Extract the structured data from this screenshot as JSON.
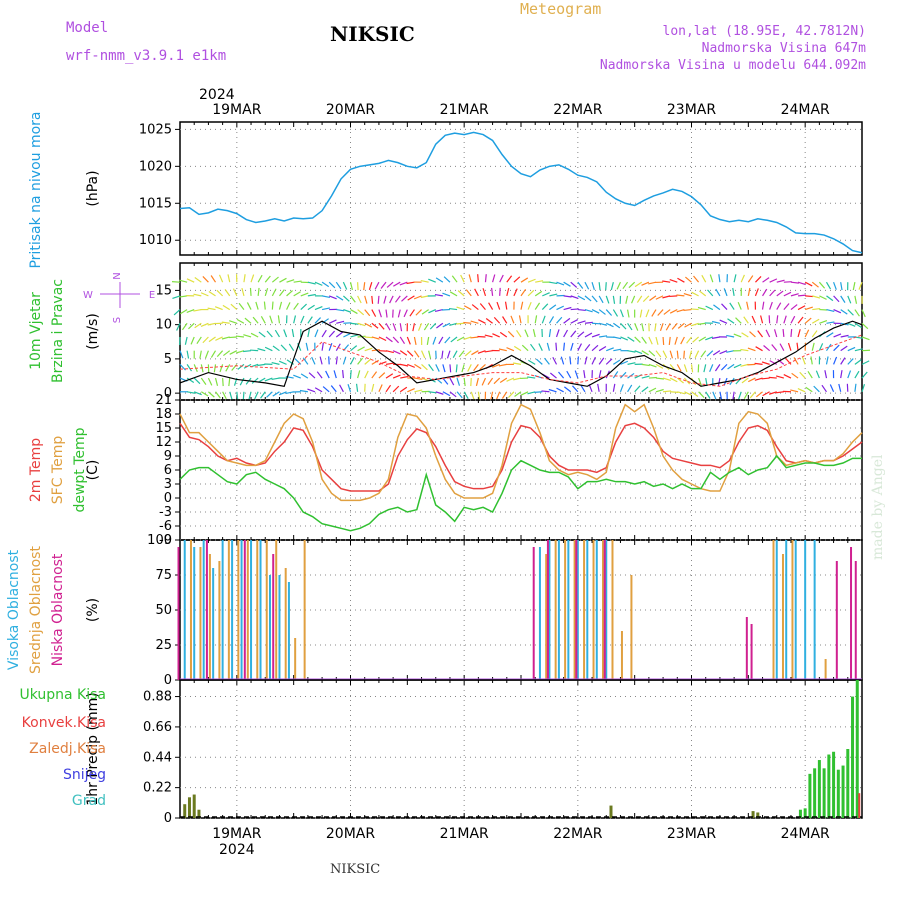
{
  "header": {
    "station": "NIKSIC",
    "meteogram": "Meteogram",
    "model_label": "Model",
    "model_name": "wrf-nmm_v3.9.1 e1km",
    "lonlat": "lon,lat (18.95E, 42.7812N)",
    "altitude": "Nadmorska Visina 647m",
    "model_altitude": "Nadmorska Visina u modelu 644.092m",
    "footer": "NIKSIC",
    "credit": "made by Angel"
  },
  "colors": {
    "pressure": "#1e9ee0",
    "temp2m": "#e84040",
    "sfc": "#e0a040",
    "dewpt": "#30c030",
    "high_cloud": "#30b0e0",
    "mid_cloud": "#e0a040",
    "low_cloud": "#d02090",
    "total_precip": "#30c030",
    "conv_precip": "#e84040",
    "frozen_precip": "#e08040",
    "snow": "#4040e0",
    "grad": "#40c0c0",
    "wind_label": "#30c030",
    "purple": "#b050e0"
  },
  "chart_data": [
    {
      "type": "line",
      "name": "pressure-panel",
      "title": "Pritisak na nivou mora",
      "ylabel": "(hPa)",
      "ylim": [
        1008,
        1026
      ],
      "yticks": [
        "1010",
        "1015",
        "1020",
        "1025"
      ],
      "ytick_values": [
        1010,
        1015,
        1020,
        1025
      ],
      "x_hours_range": [
        0,
        144
      ],
      "top_year": "2024",
      "top_dates": [
        "19MAR",
        "20MAR",
        "21MAR",
        "22MAR",
        "23MAR",
        "24MAR"
      ],
      "series": [
        {
          "key": "pressure",
          "x": [
            0,
            2,
            4,
            6,
            8,
            10,
            12,
            14,
            16,
            18,
            20,
            22,
            24,
            26,
            28,
            30,
            32,
            34,
            36,
            38,
            40,
            42,
            44,
            46,
            48,
            50,
            52,
            54,
            56,
            58,
            60,
            62,
            64,
            66,
            68,
            70,
            72,
            74,
            76,
            78,
            80,
            82,
            84,
            86,
            88,
            90,
            92,
            94,
            96,
            98,
            100,
            102,
            104,
            106,
            108,
            110,
            112,
            114,
            116,
            118,
            120,
            122,
            124,
            126,
            128,
            130,
            132,
            134,
            136,
            138,
            140,
            142,
            144
          ],
          "values": [
            1014.3,
            1014.4,
            1013.5,
            1013.7,
            1014.2,
            1014.0,
            1013.6,
            1012.8,
            1012.4,
            1012.6,
            1012.9,
            1012.6,
            1013.0,
            1012.9,
            1013.0,
            1014.0,
            1016.0,
            1018.3,
            1019.6,
            1020.0,
            1020.2,
            1020.4,
            1020.8,
            1020.5,
            1020.0,
            1019.8,
            1020.5,
            1023.0,
            1024.2,
            1024.5,
            1024.3,
            1024.6,
            1024.3,
            1023.5,
            1021.6,
            1020.0,
            1019.0,
            1018.6,
            1019.5,
            1020.0,
            1020.2,
            1019.6,
            1018.8,
            1018.5,
            1017.9,
            1016.5,
            1015.6,
            1015.0,
            1014.7,
            1015.4,
            1016.0,
            1016.4,
            1016.9,
            1016.6,
            1015.9,
            1014.8,
            1013.3,
            1012.8,
            1012.5,
            1012.7,
            1012.5,
            1012.9,
            1012.7,
            1012.4,
            1011.8,
            1011.0,
            1010.9,
            1010.9,
            1010.7,
            1010.2,
            1009.5,
            1008.6,
            1008.3
          ]
        }
      ]
    },
    {
      "type": "line",
      "name": "wind-panel",
      "title": "10m Vjetar",
      "title2": "Brzina i Pravac",
      "ylabel": "(m/s)",
      "compass": [
        "N",
        "W",
        "E",
        "S"
      ],
      "ylim": [
        -1,
        19
      ],
      "yticks": [
        "0",
        "5",
        "10",
        "15"
      ],
      "ytick_values": [
        0,
        5,
        10,
        15
      ],
      "series": [
        {
          "key": "wind-speed",
          "x": [
            0,
            6,
            12,
            18,
            22,
            26,
            30,
            34,
            38,
            42,
            46,
            50,
            54,
            58,
            62,
            66,
            70,
            74,
            78,
            82,
            86,
            90,
            94,
            98,
            102,
            106,
            110,
            114,
            118,
            122,
            126,
            130,
            134,
            138,
            142,
            144
          ],
          "values": [
            1.5,
            3.0,
            2.0,
            1.5,
            1.0,
            9.0,
            10.5,
            9.0,
            8.5,
            6.0,
            4.0,
            1.5,
            2.0,
            2.5,
            3.0,
            4.0,
            5.5,
            4.0,
            2.0,
            1.5,
            1.0,
            2.5,
            5.0,
            5.5,
            4.0,
            3.0,
            1.0,
            1.5,
            2.0,
            3.0,
            4.5,
            6.0,
            8.0,
            9.5,
            10.5,
            10.0
          ]
        },
        {
          "key": "gust-line",
          "x": [
            0,
            12,
            24,
            30,
            36,
            42,
            48,
            54,
            60,
            66,
            72,
            78,
            84,
            90,
            96,
            102,
            108,
            114,
            120,
            126,
            132,
            138,
            144
          ],
          "values": [
            3.5,
            4.0,
            3.5,
            7.5,
            6.0,
            4.5,
            2.5,
            2.0,
            2.5,
            3.0,
            3.0,
            2.0,
            1.5,
            2.5,
            2.5,
            3.0,
            1.5,
            1.0,
            2.5,
            3.5,
            5.5,
            7.0,
            8.5
          ]
        }
      ]
    },
    {
      "type": "line",
      "name": "temperature-panel",
      "title": "2m Temp",
      "title2": "SFC Temp",
      "title3": "dewpt Temp",
      "ylabel": "(C)",
      "ylim": [
        -9,
        21
      ],
      "yticks": [
        "-9",
        "-6",
        "-3",
        "0",
        "3",
        "6",
        "9",
        "12",
        "15",
        "18",
        "21"
      ],
      "ytick_values": [
        -9,
        -6,
        -3,
        0,
        3,
        6,
        9,
        12,
        15,
        18,
        21
      ],
      "series": [
        {
          "key": "temp2m",
          "x": [
            0,
            2,
            4,
            6,
            8,
            10,
            12,
            14,
            16,
            18,
            20,
            22,
            24,
            26,
            28,
            30,
            32,
            34,
            36,
            38,
            40,
            42,
            44,
            46,
            48,
            50,
            52,
            54,
            56,
            58,
            60,
            62,
            64,
            66,
            68,
            70,
            72,
            74,
            76,
            78,
            80,
            82,
            84,
            86,
            88,
            90,
            92,
            94,
            96,
            98,
            100,
            102,
            104,
            106,
            108,
            110,
            112,
            114,
            116,
            118,
            120,
            122,
            124,
            126,
            128,
            130,
            132,
            134,
            136,
            138,
            140,
            142,
            144
          ],
          "values": [
            16,
            13,
            12.5,
            11,
            9,
            8,
            8.5,
            7.5,
            7,
            7.5,
            10,
            12,
            15,
            14.5,
            11,
            6,
            4,
            2,
            1.5,
            1.5,
            1.5,
            1.5,
            3,
            9,
            12.5,
            14.8,
            14,
            11,
            7,
            3.5,
            2.5,
            2.0,
            2.0,
            2.5,
            6,
            12,
            15.5,
            15,
            13,
            9,
            7,
            6,
            6,
            6,
            5.5,
            6.5,
            12,
            15.5,
            16,
            15,
            13,
            10,
            8.5,
            8,
            7.5,
            7,
            7,
            6.5,
            8,
            12,
            15,
            15.5,
            14.5,
            11,
            8,
            7.5,
            8,
            7.5,
            8,
            8,
            9,
            10.5,
            12
          ]
        },
        {
          "key": "sfc",
          "x": [
            0,
            2,
            4,
            6,
            8,
            10,
            12,
            14,
            16,
            18,
            20,
            22,
            24,
            26,
            28,
            30,
            32,
            34,
            36,
            38,
            40,
            42,
            44,
            46,
            48,
            50,
            52,
            54,
            56,
            58,
            60,
            62,
            64,
            66,
            68,
            70,
            72,
            74,
            76,
            78,
            80,
            82,
            84,
            86,
            88,
            90,
            92,
            94,
            96,
            98,
            100,
            102,
            104,
            106,
            108,
            110,
            112,
            114,
            116,
            118,
            120,
            122,
            124,
            126,
            128,
            130,
            132,
            134,
            136,
            138,
            140,
            142,
            144
          ],
          "values": [
            18,
            14,
            14,
            12,
            10,
            8,
            7.5,
            7,
            7,
            8,
            12,
            16,
            18,
            17,
            12,
            4,
            1,
            -0.5,
            -0.5,
            -0.5,
            0,
            1,
            4,
            13,
            18,
            17.5,
            15,
            9,
            4,
            1,
            0,
            0,
            0,
            1,
            7,
            16,
            20,
            19,
            14,
            8,
            6,
            5,
            5.5,
            5,
            4,
            5.5,
            15,
            20,
            18.5,
            20,
            15,
            9,
            6,
            4,
            3,
            2,
            1.5,
            1.5,
            6,
            16,
            18.5,
            18,
            16,
            9,
            7,
            7.5,
            8,
            7.5,
            8,
            8,
            9.5,
            12,
            14
          ]
        },
        {
          "key": "dewpt",
          "x": [
            0,
            2,
            4,
            6,
            8,
            10,
            12,
            14,
            16,
            18,
            20,
            22,
            24,
            26,
            28,
            30,
            32,
            34,
            36,
            38,
            40,
            42,
            44,
            46,
            48,
            50,
            52,
            54,
            56,
            58,
            60,
            62,
            64,
            66,
            68,
            70,
            72,
            74,
            76,
            78,
            80,
            82,
            84,
            86,
            88,
            90,
            92,
            94,
            96,
            98,
            100,
            102,
            104,
            106,
            108,
            110,
            112,
            114,
            116,
            118,
            120,
            122,
            124,
            126,
            128,
            130,
            132,
            134,
            136,
            138,
            140,
            142,
            144
          ],
          "values": [
            4,
            6,
            6.5,
            6.5,
            5,
            3.5,
            3,
            5,
            5.5,
            4,
            3,
            2,
            0,
            -3,
            -4,
            -5.5,
            -6,
            -6.5,
            -7,
            -6.5,
            -5.5,
            -3.5,
            -2.5,
            -2,
            -3,
            -2.5,
            5,
            -1.5,
            -3,
            -5,
            -2,
            -2.5,
            -2,
            -3,
            1,
            6,
            8,
            7,
            6,
            5.5,
            5.5,
            4.5,
            2,
            3.5,
            3.5,
            4,
            3.5,
            3.5,
            3,
            3.5,
            2.5,
            3,
            2,
            3,
            2,
            2,
            5.5,
            4,
            5.5,
            6.5,
            5,
            6,
            6.5,
            9,
            6.5,
            7,
            7.5,
            7.5,
            7,
            7,
            7.5,
            8.5,
            8.5
          ]
        }
      ]
    },
    {
      "type": "bar",
      "name": "cloud-panel",
      "title": "Visoka Oblacnost",
      "title2": "Srednja Oblacnost",
      "title3": "Niska Oblacnost",
      "ylabel": "(%)",
      "ylim": [
        0,
        100
      ],
      "yticks": [
        "0",
        "25",
        "50",
        "75",
        "100"
      ],
      "ytick_values": [
        0,
        25,
        50,
        75,
        100
      ],
      "series": [
        {
          "key": "high",
          "x": [
            1,
            3,
            5,
            7,
            9,
            11,
            13,
            15,
            17,
            19,
            21,
            23,
            76,
            78,
            80,
            82,
            84,
            86,
            88,
            90,
            126,
            128,
            130,
            132,
            134
          ],
          "values": [
            100,
            95,
            100,
            80,
            100,
            100,
            100,
            100,
            100,
            75,
            75,
            70,
            95,
            100,
            100,
            100,
            100,
            100,
            100,
            100,
            100,
            100,
            100,
            100,
            100
          ]
        },
        {
          "key": "mid",
          "x": [
            2,
            4,
            6,
            8,
            10,
            12,
            14,
            16,
            18,
            20,
            22,
            24,
            26,
            77,
            79,
            81,
            83,
            85,
            87,
            89,
            91,
            93,
            95,
            125,
            127,
            129,
            136
          ],
          "values": [
            100,
            95,
            90,
            85,
            100,
            100,
            100,
            100,
            100,
            100,
            80,
            30,
            100,
            90,
            100,
            100,
            100,
            100,
            100,
            100,
            100,
            35,
            75,
            100,
            90,
            100,
            15
          ]
        },
        {
          "key": "low",
          "x": [
            0,
            6,
            14,
            20,
            75,
            78,
            84,
            90,
            120,
            121,
            139,
            142,
            143
          ],
          "values": [
            95,
            100,
            100,
            90,
            95,
            100,
            100,
            100,
            45,
            40,
            85,
            95,
            85
          ]
        }
      ]
    },
    {
      "type": "bar",
      "name": "precip-panel",
      "title": "Ukupna Kisa",
      "title2": "Konvek.Kisa",
      "title3": "Zaledj.Kisa",
      "title4": "Snijeg",
      "title5": "Grad",
      "ylabel": "1hr Precip (mm)",
      "ylim": [
        0,
        1.0
      ],
      "yticks": [
        "0",
        "0.22",
        "0.44",
        "0.66",
        "0.88"
      ],
      "ytick_values": [
        0,
        0.22,
        0.44,
        0.66,
        0.88
      ],
      "bottom_dates": [
        "19MAR",
        "20MAR",
        "21MAR",
        "22MAR",
        "23MAR",
        "24MAR"
      ],
      "bottom_year": "2024",
      "series": [
        {
          "key": "total",
          "x": [
            1,
            2,
            3,
            4,
            91,
            121,
            122,
            131,
            132,
            133,
            134,
            135,
            136,
            137,
            138,
            139,
            140,
            141,
            142,
            143
          ],
          "values": [
            0.1,
            0.15,
            0.17,
            0.06,
            0.09,
            0.05,
            0.04,
            0.06,
            0.07,
            0.32,
            0.36,
            0.42,
            0.36,
            0.46,
            0.48,
            0.35,
            0.38,
            0.5,
            0.88,
            1.0
          ]
        },
        {
          "key": "conv",
          "x": [
            143
          ],
          "values": [
            0.18
          ]
        }
      ]
    }
  ]
}
